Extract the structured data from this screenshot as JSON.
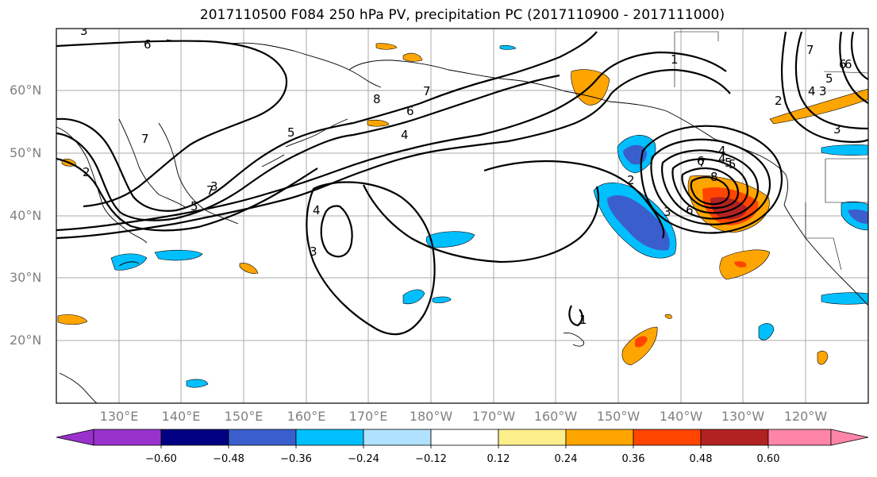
{
  "title": "2017110500 F084 250 hPa PV, precipitation PC (2017110900 - 2017111000)",
  "lat_labels": [
    "60°N",
    "50°N",
    "40°N",
    "30°N",
    "20°N"
  ],
  "lon_labels": [
    "130°E",
    "140°E",
    "150°E",
    "160°E",
    "170°E",
    "180°W",
    "170°W",
    "160°W",
    "150°W",
    "140°W",
    "130°W",
    "120°W"
  ],
  "colorbar": {
    "ticks": [
      "−0.60",
      "−0.48",
      "−0.36",
      "−0.24",
      "−0.12",
      "0.12",
      "0.24",
      "0.36",
      "0.48",
      "0.60"
    ],
    "colors": [
      "#9932cc",
      "#000080",
      "#3a5fcd",
      "#00bfff",
      "#b0e2ff",
      "#ffffff",
      "#fdee8c",
      "#ffa500",
      "#ff4500",
      "#b22222",
      "#ff85a8"
    ]
  },
  "contour_labels": [
    "6",
    "3",
    "7",
    "8",
    "6",
    "7",
    "5",
    "4",
    "7",
    "2",
    "5",
    "3",
    "4",
    "3",
    "6",
    "5",
    "4",
    "6",
    "7",
    "8",
    "4",
    "5",
    "3",
    "6",
    "2",
    "1",
    "2",
    "3",
    "4",
    "5",
    "6",
    "7",
    "3",
    "1"
  ]
}
